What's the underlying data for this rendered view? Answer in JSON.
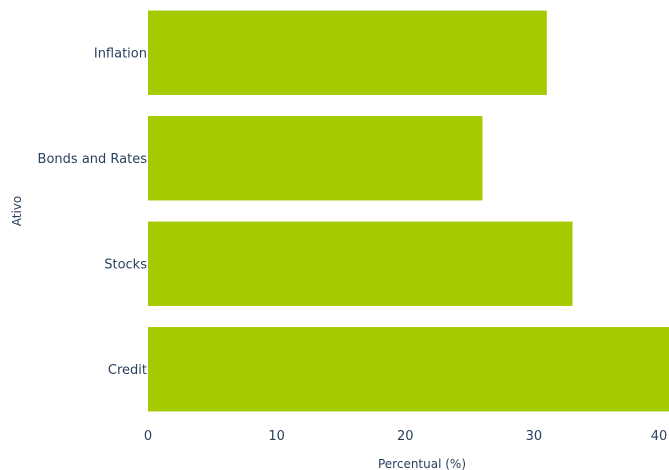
{
  "chart_data": {
    "type": "bar",
    "orientation": "horizontal",
    "categories": [
      "Inflation",
      "Bonds and Rates",
      "Stocks",
      "Credit"
    ],
    "values": [
      31,
      26,
      33,
      40.5
    ],
    "xlabel": "Percentual (%)",
    "ylabel": "Ativo",
    "xlim": [
      0,
      40.5
    ],
    "xticks": [
      0,
      10,
      20,
      30,
      40
    ],
    "grid": false,
    "legend": "none",
    "bar_color": "#a3cb00",
    "text_color": "#2a3f5f"
  }
}
